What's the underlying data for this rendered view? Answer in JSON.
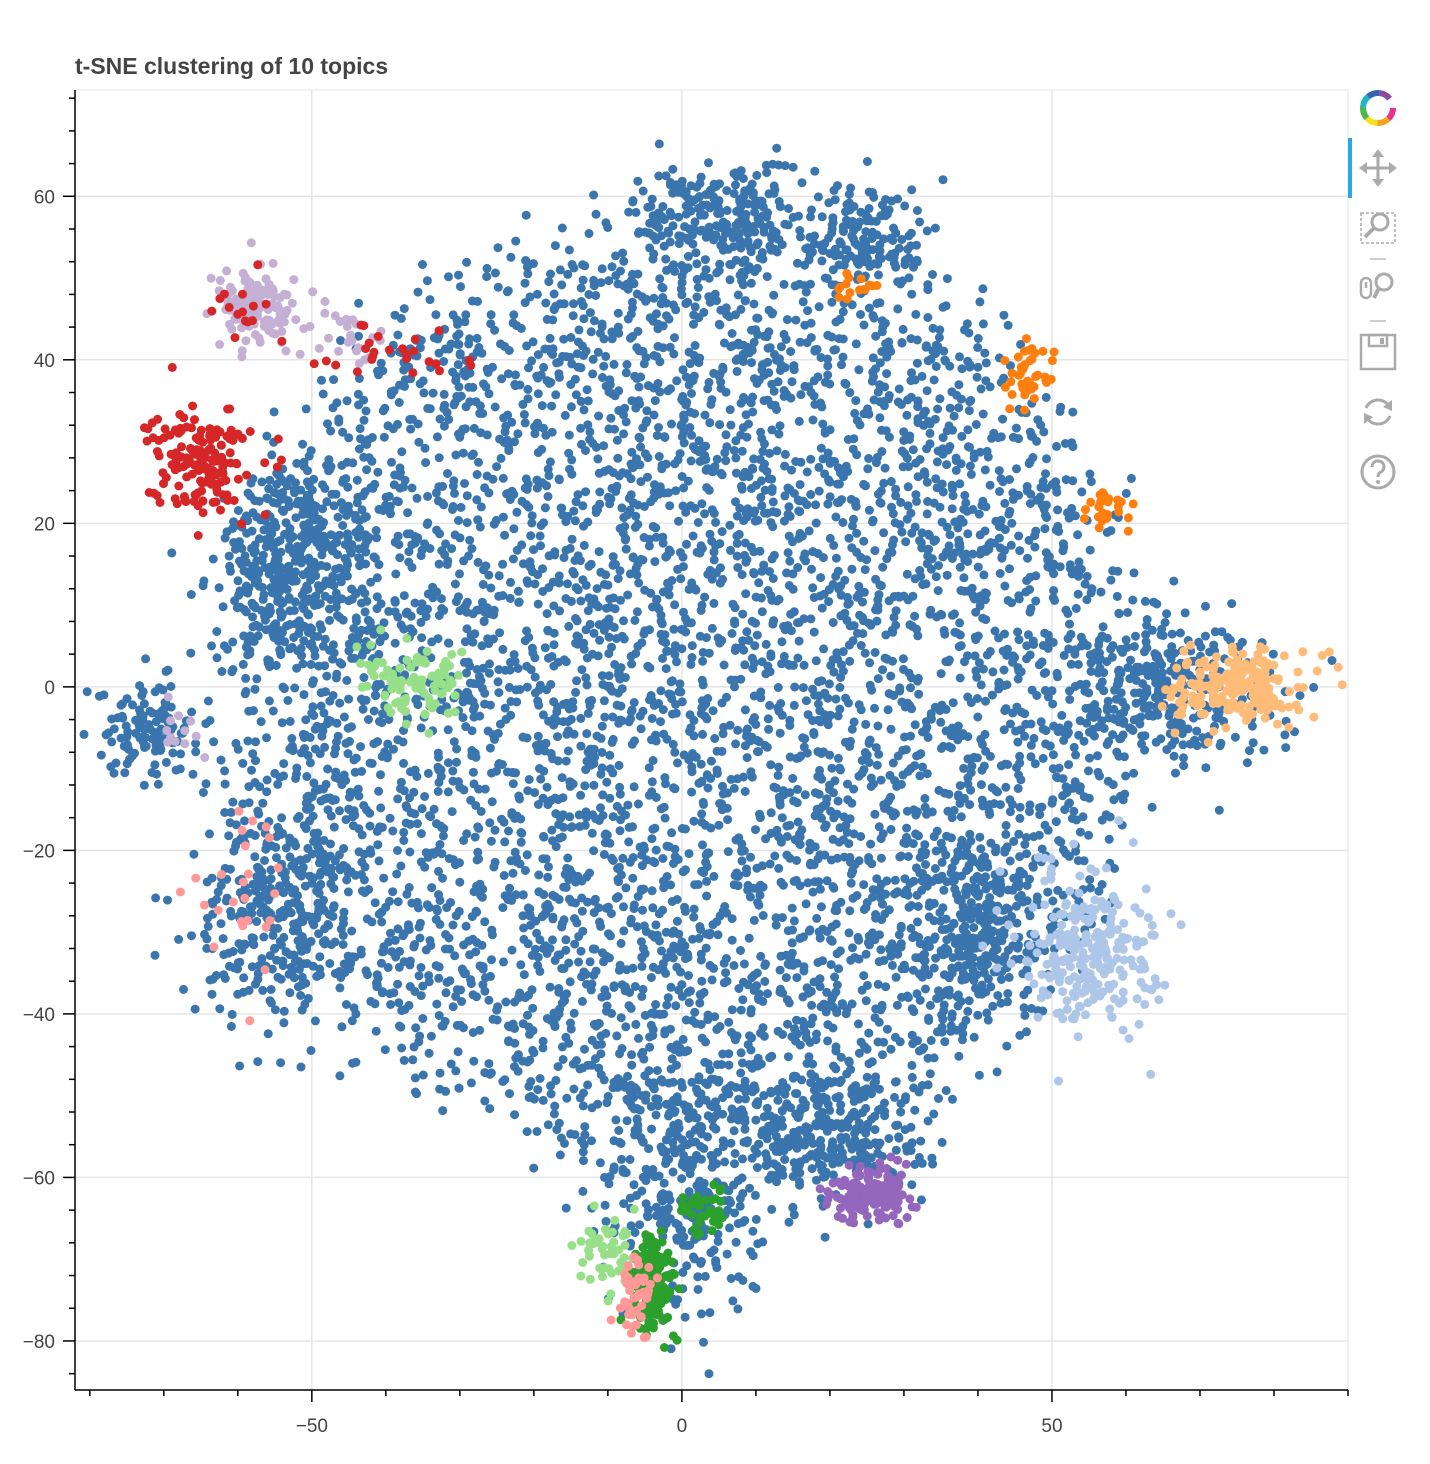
{
  "chart_data": {
    "type": "scatter",
    "title": "t-SNE clustering of 10 topics",
    "xlabel": "",
    "ylabel": "",
    "xlim": [
      -82,
      90
    ],
    "ylim": [
      -86,
      73
    ],
    "grid": true,
    "legend": "none",
    "x_ticks": [
      -50,
      0,
      50
    ],
    "x_tick_labels": [
      "−50",
      "0",
      "50"
    ],
    "y_ticks": [
      -80,
      -60,
      -40,
      -20,
      0,
      20,
      40,
      60
    ],
    "y_tick_labels": [
      "−80",
      "−60",
      "−40",
      "−20",
      "0",
      "20",
      "40",
      "60"
    ],
    "series": [
      {
        "color": "#3a75ae",
        "clusters": [
          {
            "cx": 0,
            "cy": 0,
            "rx": 68,
            "ry": 62,
            "n": 5200
          },
          {
            "cx": -52,
            "cy": 15,
            "rx": 10,
            "ry": 10,
            "n": 300
          },
          {
            "cx": -72,
            "cy": -5,
            "rx": 6,
            "ry": 5,
            "n": 120
          },
          {
            "cx": -55,
            "cy": -28,
            "rx": 10,
            "ry": 12,
            "n": 300
          },
          {
            "cx": 20,
            "cy": -55,
            "rx": 12,
            "ry": 8,
            "n": 300
          },
          {
            "cx": 0,
            "cy": -62,
            "rx": 10,
            "ry": 14,
            "n": 300
          },
          {
            "cx": 65,
            "cy": 0,
            "rx": 14,
            "ry": 8,
            "n": 300
          },
          {
            "cx": 40,
            "cy": -30,
            "rx": 10,
            "ry": 10,
            "n": 250
          },
          {
            "cx": 5,
            "cy": 58,
            "rx": 10,
            "ry": 6,
            "n": 200
          },
          {
            "cx": 25,
            "cy": 55,
            "rx": 8,
            "ry": 6,
            "n": 150
          }
        ]
      },
      {
        "color": "#c5b0d5",
        "clusters": [
          {
            "cx": -57,
            "cy": 46,
            "rx": 5,
            "ry": 4,
            "n": 150
          },
          {
            "cx": -45,
            "cy": 43,
            "rx": 5,
            "ry": 3,
            "n": 20
          },
          {
            "cx": -68,
            "cy": -6,
            "rx": 3,
            "ry": 3,
            "n": 12
          }
        ]
      },
      {
        "color": "#d62728",
        "clusters": [
          {
            "cx": -65,
            "cy": 28,
            "rx": 6,
            "ry": 6,
            "n": 160
          },
          {
            "cx": -38,
            "cy": 41,
            "rx": 8,
            "ry": 3,
            "n": 25
          },
          {
            "cx": -60,
            "cy": 47,
            "rx": 4,
            "ry": 3,
            "n": 15
          }
        ]
      },
      {
        "color": "#98df8a",
        "clusters": [
          {
            "cx": -36,
            "cy": 0,
            "rx": 7,
            "ry": 4,
            "n": 90
          },
          {
            "cx": -10,
            "cy": -70,
            "rx": 4,
            "ry": 4,
            "n": 50
          }
        ]
      },
      {
        "color": "#ff7f0e",
        "clusters": [
          {
            "cx": 47,
            "cy": 38,
            "rx": 3,
            "ry": 4,
            "n": 40
          },
          {
            "cx": 57,
            "cy": 22,
            "rx": 3,
            "ry": 3,
            "n": 25
          },
          {
            "cx": 24,
            "cy": 49,
            "rx": 3,
            "ry": 2,
            "n": 15
          }
        ]
      },
      {
        "color": "#ffbb78",
        "clusters": [
          {
            "cx": 75,
            "cy": 0,
            "rx": 8,
            "ry": 4,
            "n": 200
          }
        ]
      },
      {
        "color": "#aec7e8",
        "clusters": [
          {
            "cx": 55,
            "cy": -32,
            "rx": 8,
            "ry": 9,
            "n": 260
          }
        ]
      },
      {
        "color": "#9467bd",
        "clusters": [
          {
            "cx": 26,
            "cy": -62,
            "rx": 5,
            "ry": 3,
            "n": 160
          }
        ]
      },
      {
        "color": "#2ca02c",
        "clusters": [
          {
            "cx": -4,
            "cy": -73,
            "rx": 2.5,
            "ry": 5,
            "n": 200
          },
          {
            "cx": 3,
            "cy": -64,
            "rx": 3,
            "ry": 3,
            "n": 40
          }
        ]
      },
      {
        "color": "#ff9896",
        "clusters": [
          {
            "cx": -6,
            "cy": -74,
            "rx": 2,
            "ry": 4,
            "n": 50
          },
          {
            "cx": -58,
            "cy": -25,
            "rx": 8,
            "ry": 10,
            "n": 25
          }
        ]
      }
    ]
  },
  "toolbar": {
    "tools": [
      {
        "name": "bokeh-logo",
        "icon": "bokeh-logo-icon"
      },
      {
        "name": "pan",
        "icon": "pan-icon",
        "active": true
      },
      {
        "name": "box-zoom",
        "icon": "box-zoom-icon"
      },
      {
        "name": "wheel-zoom",
        "icon": "wheel-zoom-icon"
      },
      {
        "name": "save",
        "icon": "save-icon"
      },
      {
        "name": "reset",
        "icon": "reset-icon"
      },
      {
        "name": "help",
        "icon": "help-icon"
      }
    ]
  }
}
